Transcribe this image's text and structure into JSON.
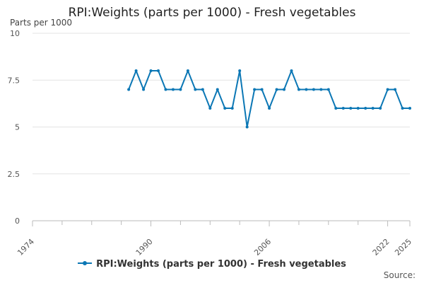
{
  "chart_data": {
    "type": "line",
    "title": "RPI:Weights (parts per 1000) - Fresh vegetables",
    "ylabel": "Parts per 1000",
    "xlabel": "",
    "xlim": [
      1974,
      2025
    ],
    "ylim": [
      0,
      10
    ],
    "y_ticks": [
      0,
      2.5,
      5,
      7.5,
      10
    ],
    "y_tick_labels": [
      "0",
      "2.5",
      "5",
      "7.5",
      "10"
    ],
    "x_ticks": [
      1974,
      1990,
      2006,
      2022,
      2025
    ],
    "x_minor_ticks": [
      1978,
      1982,
      1986,
      1994,
      1998,
      2002,
      2010,
      2014,
      2018
    ],
    "grid": "horizontal",
    "legend_position": "bottom",
    "series": [
      {
        "name": "RPI:Weights (parts per 1000) - Fresh vegetables",
        "color": "#0b77b5",
        "x": [
          1987,
          1988,
          1989,
          1990,
          1991,
          1992,
          1993,
          1994,
          1995,
          1996,
          1997,
          1998,
          1999,
          2000,
          2001,
          2002,
          2003,
          2004,
          2005,
          2006,
          2007,
          2008,
          2009,
          2010,
          2011,
          2012,
          2013,
          2014,
          2015,
          2016,
          2017,
          2018,
          2019,
          2020,
          2021,
          2022,
          2023,
          2024,
          2025
        ],
        "values": [
          7,
          8,
          7,
          8,
          8,
          7,
          7,
          7,
          8,
          7,
          7,
          6,
          7,
          6,
          6,
          8,
          5,
          7,
          7,
          6,
          7,
          7,
          8,
          7,
          7,
          7,
          7,
          7,
          6,
          6,
          6,
          6,
          6,
          6,
          6,
          7,
          7,
          6,
          6
        ]
      }
    ]
  },
  "footer": {
    "source_label": "Source:"
  }
}
